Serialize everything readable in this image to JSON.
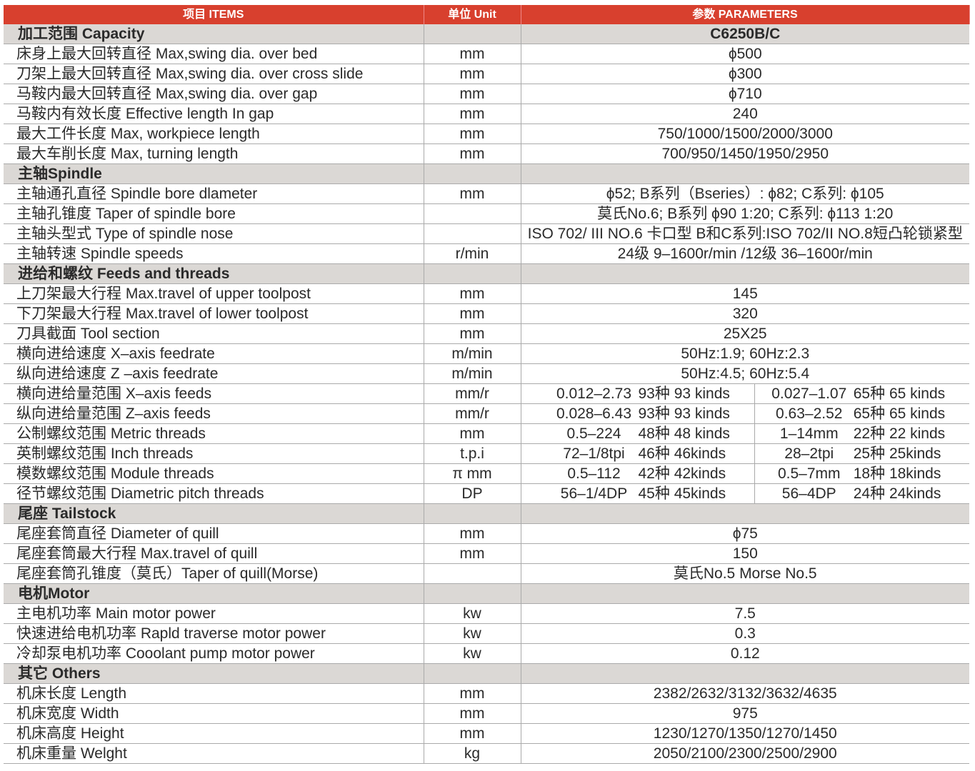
{
  "header": {
    "items": "项目 ITEMS",
    "unit": "单位 Unit",
    "params": "参数 PARAMETERS"
  },
  "sections": [
    {
      "title": "加工范围 Capacity",
      "value": "C6250B/C",
      "rows": [
        {
          "item": "床身上最大回转直径  Max,swing dia. over bed",
          "unit": "mm",
          "value": "ϕ500"
        },
        {
          "item": "刀架上最大回转直径  Max,swing dia. over cross slide",
          "unit": "mm",
          "value": "ϕ300"
        },
        {
          "item": "马鞍内最大回转直径  Max,swing dia. over gap",
          "unit": "mm",
          "value": "ϕ710"
        },
        {
          "item": "马鞍内有效长度 Effective length In gap",
          "unit": "mm",
          "value": "240"
        },
        {
          "item": "最大工件长度 Max, workpiece length",
          "unit": "mm",
          "value": "750/1000/1500/2000/3000"
        },
        {
          "item": "最大车削长度 Max, turning length",
          "unit": "mm",
          "value": "700/950/1450/1950/2950"
        }
      ]
    },
    {
      "title": "主轴Spindle",
      "value": "",
      "rows": [
        {
          "item": "主轴通孔直径 Spindle bore dlameter",
          "unit": "mm",
          "value": "ϕ52; B系列（Bseries）: ϕ82; C系列: ϕ105"
        },
        {
          "item": "主轴孔锥度    Taper of spindle bore",
          "unit": "",
          "value": "莫氏No.6; B系列 ϕ90 1:20; C系列: ϕ113  1:20"
        },
        {
          "item": "主轴头型式    Type of spindle nose",
          "unit": "",
          "value": "ISO 702/ III NO.6 卡口型   B和C系列:ISO 702/II NO.8短凸轮锁紧型"
        },
        {
          "item": "主轴转速       Spindle speeds",
          "unit": "r/min",
          "value": "24级  9–1600r/min /12级 36–1600r/min"
        }
      ]
    },
    {
      "title": "进给和螺纹  Feeds and threads",
      "value": "",
      "rows": [
        {
          "item": "上刀架最大行程   Max.travel of upper toolpost",
          "unit": "mm",
          "value": "145"
        },
        {
          "item": "下刀架最大行程   Max.travel of lower toolpost",
          "unit": "mm",
          "value": "320"
        },
        {
          "item": "刀具截面          Tool section",
          "unit": "mm",
          "value": "25X25"
        },
        {
          "item": "横向进给速度  X–axis  feedrate",
          "unit": "m/min",
          "value": "50Hz:1.9;  60Hz:2.3"
        },
        {
          "item": "纵向进给速度  Z –axis  feedrate",
          "unit": "m/min",
          "value": "50Hz:4.5;  60Hz:5.4"
        },
        {
          "item": "横向进给量范围  X–axis  feeds",
          "unit": "mm/r",
          "split": [
            "0.012–2.73",
            "93种  93 kinds",
            "0.027–1.07",
            "65种  65 kinds"
          ]
        },
        {
          "item": "纵向进给量范围  Z–axis  feeds",
          "unit": "mm/r",
          "split": [
            "0.028–6.43",
            "93种  93 kinds",
            "0.63–2.52",
            "65种  65 kinds"
          ]
        },
        {
          "item": "公制螺纹范围     Metric threads",
          "unit": "mm",
          "split": [
            "0.5–224",
            "48种  48 kinds",
            "1–14mm",
            "22种  22 kinds"
          ]
        },
        {
          "item": "英制螺纹范围  Inch threads",
          "unit": "t.p.i",
          "split": [
            "72–1/8tpi",
            "46种  46kinds",
            "28–2tpi",
            "25种  25kinds"
          ]
        },
        {
          "item": "模数螺纹范围  Module threads",
          "unit": "π  mm",
          "split": [
            "0.5–112",
            "42种  42kinds",
            "0.5–7mm",
            "18种  18kinds"
          ]
        },
        {
          "item": "径节螺纹范围  Diametric pitch threads",
          "unit": "DP",
          "split": [
            "56–1/4DP",
            "45种  45kinds",
            "56–4DP",
            "24种  24kinds"
          ]
        }
      ]
    },
    {
      "title": "尾座  Tailstock",
      "value": "",
      "rows": [
        {
          "item": "尾座套筒直径     Diameter of quill",
          "unit": "mm",
          "value": "ϕ75"
        },
        {
          "item": "尾座套筒最大行程   Max.travel of quill",
          "unit": "mm",
          "value": "150"
        },
        {
          "item": "尾座套筒孔锥度（莫氏）Taper of quill(Morse)",
          "unit": "",
          "value": "莫氏No.5  Morse  No.5"
        }
      ]
    },
    {
      "title": "电机Motor",
      "value": "",
      "rows": [
        {
          "item": "主电机功率      Main motor power",
          "unit": "kw",
          "value": "7.5"
        },
        {
          "item": "快速进给电机功率   Rapld traverse motor power",
          "unit": "kw",
          "value": "0.3"
        },
        {
          "item": "冷却泵电机功率     Cooolant pump motor power",
          "unit": "kw",
          "value": "0.12"
        }
      ]
    },
    {
      "title": "其它  Others",
      "value": "",
      "rows": [
        {
          "item": "机床长度  Length",
          "unit": "mm",
          "value": "2382/2632/3132/3632/4635"
        },
        {
          "item": "机床宽度  Width",
          "unit": "mm",
          "value": "975"
        },
        {
          "item": "机床高度  Height",
          "unit": "mm",
          "value": "1230/1270/1350/1270/1450"
        },
        {
          "item": "机床重量  Welght",
          "unit": "kg",
          "value": "2050/2100/2300/2500/2900"
        }
      ]
    }
  ]
}
